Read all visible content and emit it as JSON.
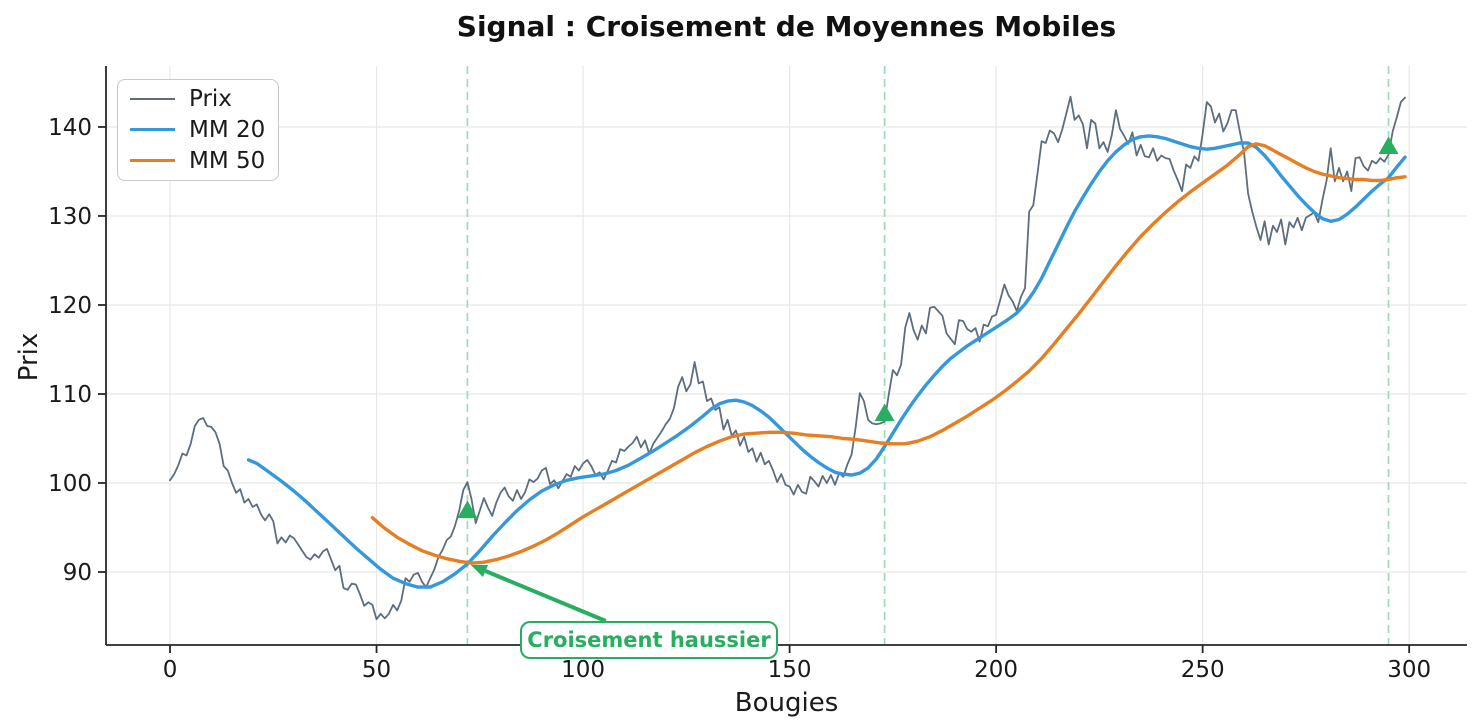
{
  "title": "Signal : Croisement de Moyennes Mobiles",
  "annotation": {
    "text": "Croisement haussier",
    "color": "#27ae60",
    "arrow_tail_data": [
      105.5,
      84.5
    ],
    "arrow_tip_data": [
      72.8,
      90.8
    ]
  },
  "legend": {
    "items": [
      {
        "label": "Prix",
        "color": "#5d6d7e",
        "thickness": 2.2
      },
      {
        "label": "MM 20",
        "color": "#3498db",
        "thickness": 3.6
      },
      {
        "label": "MM 50",
        "color": "#e67e22",
        "thickness": 3.6
      }
    ]
  },
  "colors": {
    "price": "#5d6d7e",
    "mm20": "#3498db",
    "mm50": "#e67e22",
    "signal_green": "#27ae60",
    "signal_dash": "#9edbb9",
    "grid": "#e8e8e8",
    "axis": "#262626",
    "text": "#1a1a1a"
  },
  "chart_data": {
    "type": "line",
    "title": "Signal : Croisement de Moyennes Mobiles",
    "xlabel": "Bougies",
    "ylabel": "Prix",
    "xlim": [
      -15.5,
      314
    ],
    "ylim": [
      81.8,
      146.85
    ],
    "xticks": [
      0,
      50,
      100,
      150,
      200,
      250,
      300
    ],
    "yticks": [
      90,
      100,
      110,
      120,
      130,
      140
    ],
    "grid": true,
    "legend_position": "upper left",
    "series": [
      {
        "name": "Prix",
        "color": "#5d6d7e",
        "width": 1.8,
        "x0": 0,
        "dx": 1,
        "values": [
          100.3,
          101.0,
          102.0,
          103.3,
          103.1,
          104.4,
          106.4,
          107.1,
          107.3,
          106.4,
          106.3,
          105.7,
          104.4,
          101.9,
          101.4,
          100.0,
          98.9,
          99.3,
          97.8,
          98.2,
          97.3,
          97.6,
          96.5,
          95.8,
          96.5,
          95.7,
          93.2,
          93.9,
          93.3,
          94.1,
          93.8,
          93.1,
          92.4,
          91.7,
          91.4,
          92.0,
          91.6,
          92.3,
          92.6,
          91.4,
          90.2,
          90.7,
          88.2,
          88.0,
          88.7,
          88.6,
          87.5,
          86.2,
          86.6,
          86.3,
          84.7,
          85.3,
          84.8,
          85.3,
          86.3,
          85.7,
          86.8,
          89.3,
          88.9,
          89.7,
          89.9,
          88.9,
          88.3,
          89.3,
          90.3,
          91.7,
          92.5,
          93.6,
          94.0,
          95.2,
          96.9,
          99.2,
          100.1,
          98.2,
          95.5,
          96.9,
          98.3,
          97.2,
          96.3,
          97.8,
          98.9,
          99.5,
          98.5,
          98.0,
          99.2,
          98.2,
          99.0,
          100.4,
          100.1,
          100.5,
          101.4,
          101.7,
          99.9,
          100.3,
          99.4,
          100.2,
          101.0,
          100.7,
          101.9,
          101.4,
          102.2,
          102.6,
          101.9,
          100.9,
          101.2,
          100.4,
          101.4,
          102.5,
          102.3,
          103.8,
          103.6,
          104.1,
          104.5,
          105.2,
          104.0,
          104.8,
          103.3,
          104.4,
          105.1,
          105.8,
          106.6,
          107.2,
          108.4,
          110.8,
          111.9,
          110.3,
          111.1,
          113.6,
          111.2,
          111.4,
          109.2,
          109.5,
          108.2,
          108.5,
          106.0,
          107.1,
          105.3,
          105.9,
          104.2,
          105.2,
          103.5,
          103.9,
          102.4,
          103.4,
          102.1,
          102.5,
          101.4,
          100.1,
          101.0,
          99.8,
          99.6,
          98.7,
          99.8,
          99.0,
          98.8,
          100.7,
          100.2,
          99.6,
          100.8,
          100.0,
          100.9,
          99.8,
          101.1,
          100.7,
          102.1,
          103.2,
          106.3,
          110.1,
          109.2,
          107.1,
          106.7,
          106.6,
          106.7,
          106.9,
          109.9,
          112.7,
          112.1,
          113.3,
          117.5,
          119.1,
          117.2,
          116.1,
          117.7,
          116.8,
          119.7,
          119.8,
          119.3,
          118.8,
          116.8,
          116.2,
          115.6,
          118.3,
          118.2,
          117.3,
          117.0,
          117.4,
          115.9,
          117.8,
          117.6,
          118.7,
          118.9,
          120.6,
          122.3,
          121.1,
          120.4,
          119.3,
          120.9,
          121.9,
          130.5,
          131.2,
          134.7,
          138.4,
          138.2,
          139.6,
          139.3,
          138.3,
          139.7,
          141.5,
          143.4,
          140.8,
          141.3,
          140.3,
          137.6,
          140.8,
          140.4,
          137.6,
          138.3,
          137.2,
          139.1,
          141.9,
          139.8,
          139.0,
          138.1,
          139.4,
          136.8,
          138.0,
          136.7,
          136.6,
          137.6,
          136.2,
          136.8,
          136.5,
          136.4,
          135.1,
          134.0,
          132.8,
          135.8,
          135.4,
          136.7,
          136.2,
          139.2,
          142.8,
          142.3,
          140.5,
          141.5,
          139.5,
          140.4,
          141.9,
          141.9,
          139.5,
          137.2,
          132.5,
          130.5,
          128.8,
          127.3,
          129.4,
          126.8,
          128.9,
          128.2,
          129.6,
          126.8,
          129.3,
          128.7,
          129.8,
          128.4,
          129.8,
          130.1,
          130.4,
          129.3,
          131.8,
          134.0,
          137.6,
          133.9,
          135.4,
          133.9,
          135.0,
          132.8,
          136.5,
          136.6,
          135.6,
          135.1,
          136.2,
          135.9,
          136.5,
          136.1,
          136.9,
          139.5,
          141.1,
          142.8,
          143.3
        ]
      },
      {
        "name": "MM 20",
        "color": "#3498db",
        "width": 3.4,
        "points": [
          [
            19,
            102.6
          ],
          [
            21,
            102.2
          ],
          [
            24,
            101.2
          ],
          [
            27,
            100.2
          ],
          [
            30,
            99.1
          ],
          [
            33,
            97.9
          ],
          [
            36,
            96.6
          ],
          [
            39,
            95.3
          ],
          [
            42,
            94.0
          ],
          [
            45,
            92.7
          ],
          [
            48,
            91.5
          ],
          [
            51,
            90.3
          ],
          [
            54,
            89.3
          ],
          [
            57,
            88.7
          ],
          [
            60,
            88.3
          ],
          [
            63,
            88.3
          ],
          [
            66,
            88.9
          ],
          [
            69,
            89.8
          ],
          [
            72,
            90.9
          ],
          [
            75,
            92.4
          ],
          [
            78,
            94.0
          ],
          [
            81,
            95.5
          ],
          [
            84,
            96.9
          ],
          [
            87,
            98.1
          ],
          [
            90,
            99.1
          ],
          [
            93,
            99.8
          ],
          [
            96,
            100.3
          ],
          [
            99,
            100.6
          ],
          [
            102,
            100.8
          ],
          [
            105,
            101.0
          ],
          [
            108,
            101.4
          ],
          [
            111,
            102.0
          ],
          [
            114,
            102.8
          ],
          [
            117,
            103.6
          ],
          [
            120,
            104.5
          ],
          [
            123,
            105.4
          ],
          [
            126,
            106.4
          ],
          [
            129,
            107.5
          ],
          [
            131,
            108.3
          ],
          [
            133,
            108.9
          ],
          [
            135,
            109.2
          ],
          [
            137,
            109.3
          ],
          [
            139,
            109.1
          ],
          [
            141,
            108.7
          ],
          [
            143,
            108.1
          ],
          [
            145,
            107.4
          ],
          [
            147,
            106.5
          ],
          [
            149,
            105.6
          ],
          [
            151,
            104.7
          ],
          [
            153,
            103.8
          ],
          [
            155,
            103.0
          ],
          [
            157,
            102.3
          ],
          [
            159,
            101.7
          ],
          [
            161,
            101.2
          ],
          [
            163,
            101.0
          ],
          [
            165,
            100.9
          ],
          [
            167,
            101.1
          ],
          [
            169,
            101.7
          ],
          [
            171,
            102.7
          ],
          [
            173,
            104.1
          ],
          [
            175,
            105.6
          ],
          [
            177,
            107.1
          ],
          [
            179,
            108.5
          ],
          [
            181,
            109.8
          ],
          [
            183,
            111.0
          ],
          [
            185,
            112.1
          ],
          [
            187,
            113.1
          ],
          [
            189,
            114.0
          ],
          [
            191,
            114.7
          ],
          [
            193,
            115.4
          ],
          [
            195,
            116.0
          ],
          [
            197,
            116.6
          ],
          [
            199,
            117.2
          ],
          [
            201,
            117.8
          ],
          [
            203,
            118.4
          ],
          [
            205,
            119.1
          ],
          [
            207,
            120.1
          ],
          [
            209,
            121.4
          ],
          [
            211,
            123.0
          ],
          [
            213,
            124.9
          ],
          [
            215,
            126.8
          ],
          [
            217,
            128.7
          ],
          [
            219,
            130.5
          ],
          [
            221,
            132.1
          ],
          [
            223,
            133.6
          ],
          [
            225,
            135.0
          ],
          [
            227,
            136.2
          ],
          [
            229,
            137.2
          ],
          [
            231,
            138.0
          ],
          [
            233,
            138.6
          ],
          [
            235,
            138.9
          ],
          [
            237,
            139.0
          ],
          [
            239,
            138.9
          ],
          [
            241,
            138.7
          ],
          [
            243,
            138.4
          ],
          [
            245,
            138.1
          ],
          [
            247,
            137.8
          ],
          [
            249,
            137.6
          ],
          [
            251,
            137.5
          ],
          [
            253,
            137.6
          ],
          [
            255,
            137.8
          ],
          [
            257,
            138.0
          ],
          [
            259,
            138.2
          ],
          [
            261,
            138.2
          ],
          [
            263,
            137.7
          ],
          [
            265,
            136.8
          ],
          [
            267,
            135.7
          ],
          [
            269,
            134.5
          ],
          [
            271,
            133.4
          ],
          [
            273,
            132.3
          ],
          [
            275,
            131.3
          ],
          [
            277,
            130.4
          ],
          [
            279,
            129.7
          ],
          [
            281,
            129.4
          ],
          [
            283,
            129.6
          ],
          [
            285,
            130.2
          ],
          [
            287,
            131.0
          ],
          [
            289,
            131.9
          ],
          [
            291,
            132.8
          ],
          [
            293,
            133.6
          ],
          [
            295,
            134.3
          ],
          [
            297,
            135.5
          ],
          [
            299,
            136.6
          ]
        ]
      },
      {
        "name": "MM 50",
        "color": "#e67e22",
        "width": 3.4,
        "points": [
          [
            49,
            96.1
          ],
          [
            52,
            94.9
          ],
          [
            55,
            93.9
          ],
          [
            58,
            93.1
          ],
          [
            61,
            92.4
          ],
          [
            64,
            91.9
          ],
          [
            67,
            91.5
          ],
          [
            70,
            91.2
          ],
          [
            73,
            91.0
          ],
          [
            76,
            91.1
          ],
          [
            79,
            91.4
          ],
          [
            82,
            91.8
          ],
          [
            85,
            92.3
          ],
          [
            88,
            92.9
          ],
          [
            91,
            93.6
          ],
          [
            94,
            94.4
          ],
          [
            97,
            95.3
          ],
          [
            100,
            96.2
          ],
          [
            103,
            97.0
          ],
          [
            106,
            97.8
          ],
          [
            109,
            98.6
          ],
          [
            112,
            99.4
          ],
          [
            115,
            100.2
          ],
          [
            118,
            101.0
          ],
          [
            121,
            101.8
          ],
          [
            124,
            102.6
          ],
          [
            127,
            103.4
          ],
          [
            130,
            104.1
          ],
          [
            133,
            104.7
          ],
          [
            136,
            105.2
          ],
          [
            139,
            105.5
          ],
          [
            142,
            105.6
          ],
          [
            145,
            105.7
          ],
          [
            148,
            105.7
          ],
          [
            151,
            105.6
          ],
          [
            154,
            105.4
          ],
          [
            157,
            105.3
          ],
          [
            160,
            105.2
          ],
          [
            163,
            105.0
          ],
          [
            166,
            104.9
          ],
          [
            169,
            104.7
          ],
          [
            172,
            104.5
          ],
          [
            175,
            104.4
          ],
          [
            178,
            104.4
          ],
          [
            181,
            104.7
          ],
          [
            184,
            105.2
          ],
          [
            187,
            105.9
          ],
          [
            190,
            106.7
          ],
          [
            193,
            107.5
          ],
          [
            196,
            108.4
          ],
          [
            199,
            109.3
          ],
          [
            202,
            110.3
          ],
          [
            205,
            111.4
          ],
          [
            208,
            112.6
          ],
          [
            211,
            114.0
          ],
          [
            214,
            115.6
          ],
          [
            217,
            117.3
          ],
          [
            220,
            119.0
          ],
          [
            223,
            120.8
          ],
          [
            226,
            122.6
          ],
          [
            229,
            124.4
          ],
          [
            232,
            126.1
          ],
          [
            235,
            127.7
          ],
          [
            238,
            129.1
          ],
          [
            241,
            130.4
          ],
          [
            244,
            131.6
          ],
          [
            247,
            132.7
          ],
          [
            250,
            133.7
          ],
          [
            253,
            134.7
          ],
          [
            256,
            135.7
          ],
          [
            259,
            136.9
          ],
          [
            261,
            137.8
          ],
          [
            263,
            138.1
          ],
          [
            265,
            137.9
          ],
          [
            267,
            137.4
          ],
          [
            269,
            136.9
          ],
          [
            271,
            136.4
          ],
          [
            273,
            135.9
          ],
          [
            275,
            135.4
          ],
          [
            277,
            135.0
          ],
          [
            279,
            134.7
          ],
          [
            281,
            134.5
          ],
          [
            283,
            134.3
          ],
          [
            285,
            134.2
          ],
          [
            287,
            134.1
          ],
          [
            289,
            134.1
          ],
          [
            291,
            134.0
          ],
          [
            293,
            134.0
          ],
          [
            295,
            134.1
          ],
          [
            297,
            134.3
          ],
          [
            299,
            134.4
          ]
        ]
      }
    ],
    "crossover_signals": {
      "marker": "triangle-up",
      "marker_color": "#27ae60",
      "dashed_line_color": "#9edbb9",
      "events": [
        {
          "x": 72,
          "marker_y": 96.9
        },
        {
          "x": 173,
          "marker_y": 107.8
        },
        {
          "x": 295,
          "marker_y": 137.8
        }
      ]
    }
  }
}
